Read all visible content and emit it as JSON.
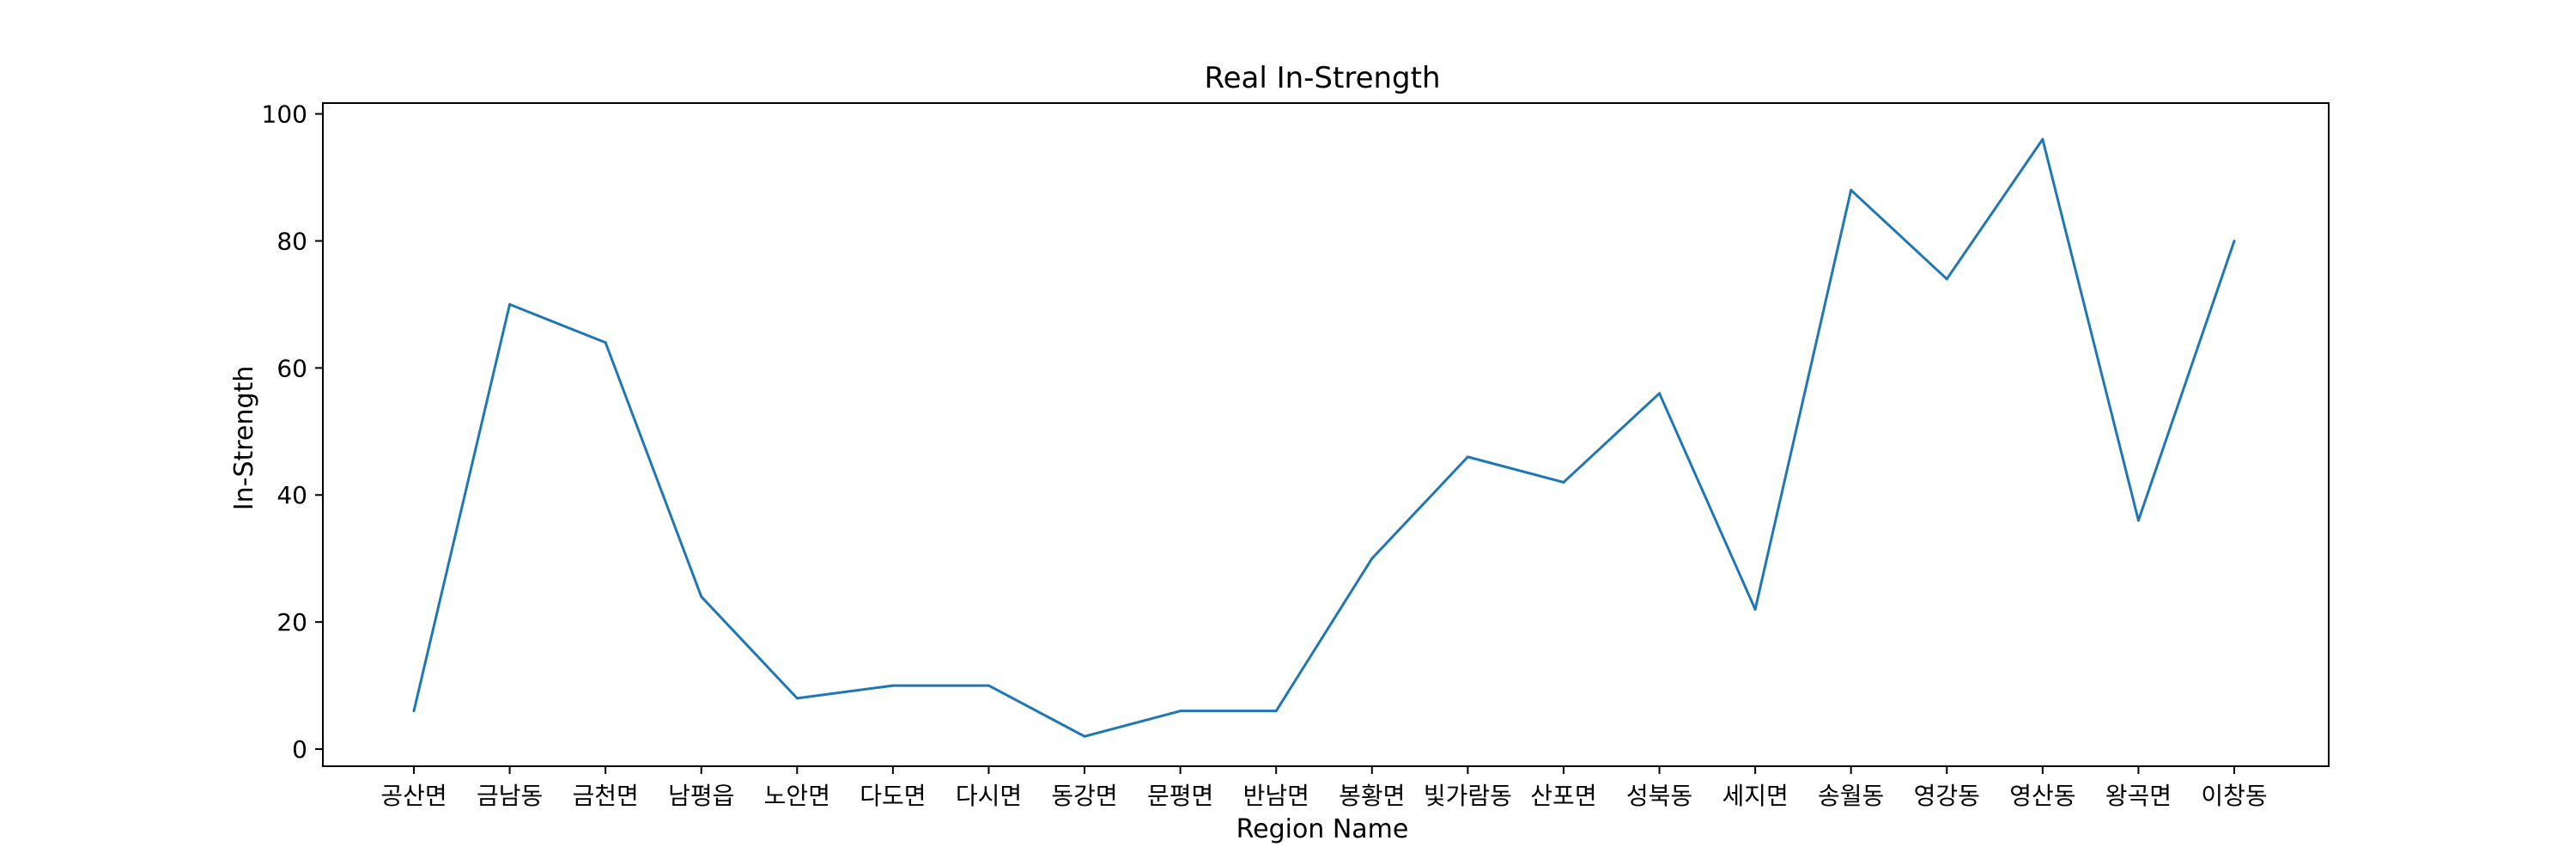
{
  "colors": {
    "line": "#1f77b4",
    "axis": "#000000",
    "background": "#ffffff"
  },
  "chart_data": {
    "type": "line",
    "title": "Real In-Strength",
    "xlabel": "Region Name",
    "ylabel": "In-Strength",
    "categories": [
      "공산면",
      "금남동",
      "금천면",
      "남평읍",
      "노안면",
      "다도면",
      "다시면",
      "동강면",
      "문평면",
      "반남면",
      "봉황면",
      "빛가람동",
      "산포면",
      "성북동",
      "세지면",
      "송월동",
      "영강동",
      "영산동",
      "왕곡면",
      "이창동"
    ],
    "values": [
      6,
      70,
      64,
      24,
      8,
      10,
      10,
      2,
      6,
      6,
      30,
      46,
      42,
      56,
      22,
      88,
      74,
      96,
      36,
      80
    ],
    "yticks": [
      0,
      20,
      40,
      60,
      80,
      100
    ],
    "ylim": [
      -2.7,
      101.7
    ],
    "grid": false,
    "legend": "none"
  }
}
